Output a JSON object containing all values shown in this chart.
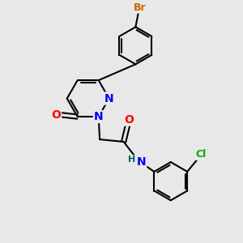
{
  "background_color": "#e8e8e8",
  "bond_color": "#000000",
  "bond_width": 1.5,
  "atom_colors": {
    "N": "#0000ff",
    "O": "#ff0000",
    "Br": "#cc6600",
    "Cl": "#00aa00",
    "H": "#006060",
    "C": "#000000"
  },
  "font_size": 9,
  "fig_width": 3.0,
  "fig_height": 3.0
}
